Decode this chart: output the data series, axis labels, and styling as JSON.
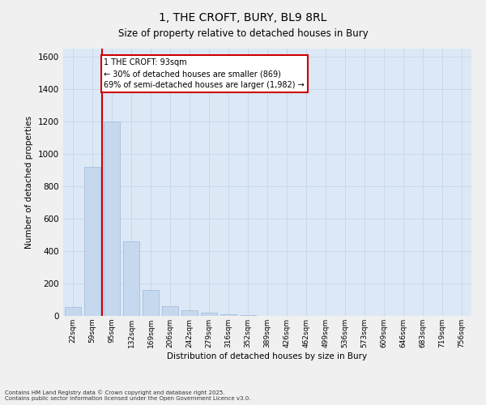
{
  "title1": "1, THE CROFT, BURY, BL9 8RL",
  "title2": "Size of property relative to detached houses in Bury",
  "xlabel": "Distribution of detached houses by size in Bury",
  "ylabel": "Number of detached properties",
  "categories": [
    "22sqm",
    "59sqm",
    "95sqm",
    "132sqm",
    "169sqm",
    "206sqm",
    "242sqm",
    "279sqm",
    "316sqm",
    "352sqm",
    "389sqm",
    "426sqm",
    "462sqm",
    "499sqm",
    "536sqm",
    "573sqm",
    "609sqm",
    "646sqm",
    "683sqm",
    "719sqm",
    "756sqm"
  ],
  "values": [
    55,
    920,
    1200,
    460,
    160,
    60,
    35,
    20,
    8,
    5,
    0,
    0,
    0,
    0,
    0,
    0,
    0,
    0,
    0,
    0,
    0
  ],
  "bar_color": "#c5d8ed",
  "bar_edgecolor": "#a0b8d8",
  "vline_color": "#cc0000",
  "annotation_text": "1 THE CROFT: 93sqm\n← 30% of detached houses are smaller (869)\n69% of semi-detached houses are larger (1,982) →",
  "annotation_box_edgecolor": "#cc0000",
  "ylim": [
    0,
    1650
  ],
  "yticks": [
    0,
    200,
    400,
    600,
    800,
    1000,
    1200,
    1400,
    1600
  ],
  "grid_color": "#c8d8e8",
  "plot_bg_color": "#dce8f5",
  "fig_bg_color": "#f0f0f0",
  "footer1": "Contains HM Land Registry data © Crown copyright and database right 2025.",
  "footer2": "Contains public sector information licensed under the Open Government Licence v3.0."
}
